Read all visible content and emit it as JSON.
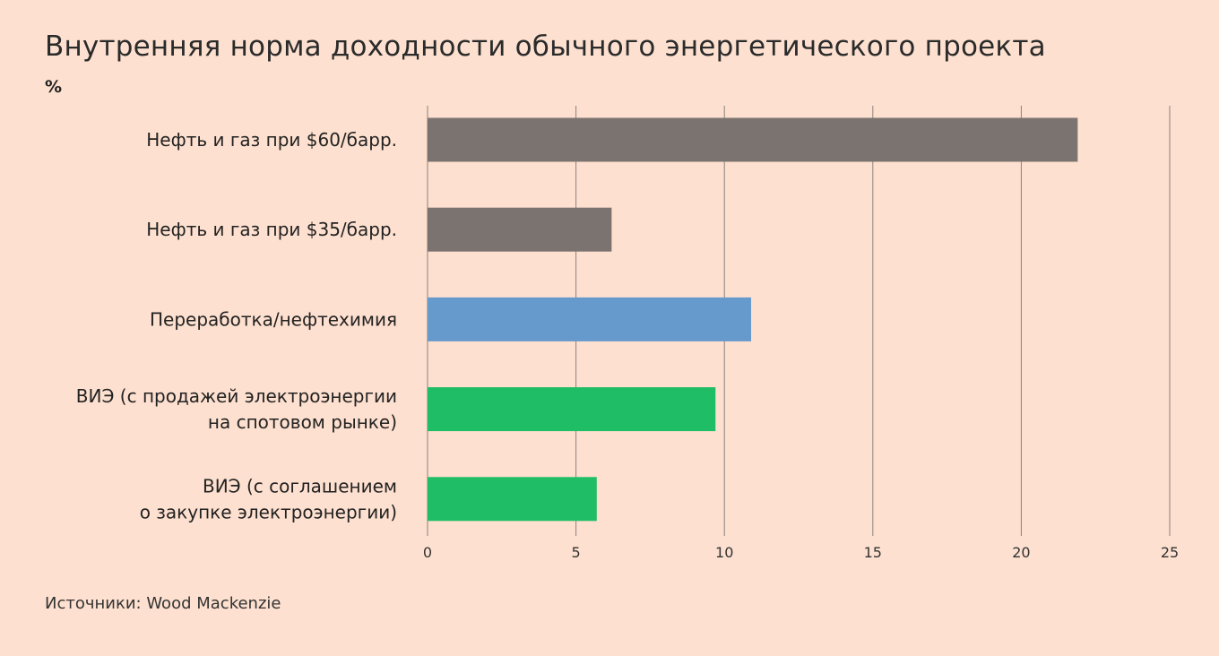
{
  "title": "Внутренняя норма доходности обычного энергетического проекта",
  "unit": "%",
  "source": "Источники: Wood Mackenzie",
  "chart_data": {
    "type": "bar",
    "orientation": "horizontal",
    "categories": [
      [
        "Нефть и газ при $60/барр."
      ],
      [
        "Нефть и газ при $35/барр."
      ],
      [
        "Переработка/нефтехимия"
      ],
      [
        "ВИЭ (с продажей электроэнергии",
        "на спотовом рынке)"
      ],
      [
        "ВИЭ (с соглашением",
        "о закупке электроэнергии)"
      ]
    ],
    "values": [
      21.9,
      6.2,
      10.9,
      9.7,
      5.7
    ],
    "colors": [
      "#7b7370",
      "#7b7370",
      "#6699cc",
      "#1fbd66",
      "#1fbd66"
    ],
    "xlim": [
      0,
      25
    ],
    "xticks": [
      0,
      5,
      10,
      15,
      20,
      25
    ],
    "grid": "vertical",
    "gridColor": "#8a827e"
  }
}
